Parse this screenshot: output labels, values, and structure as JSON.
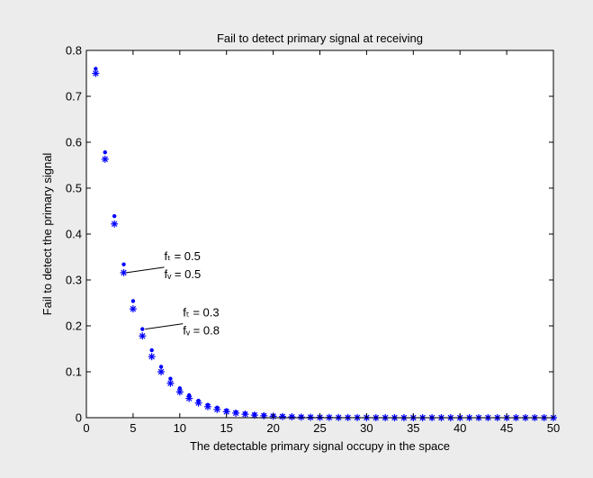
{
  "chart_data": {
    "type": "scatter",
    "title": "Fail to detect primary signal at receiving",
    "xlabel": "The detectable primary signal occupy in the space",
    "ylabel": "Fail to detect the primary signal",
    "xlim": [
      0,
      50
    ],
    "ylim": [
      0,
      0.8
    ],
    "xticks": [
      0,
      5,
      10,
      15,
      20,
      25,
      30,
      35,
      40,
      45,
      50
    ],
    "yticks": [
      0,
      0.1,
      0.2,
      0.3,
      0.4,
      0.5,
      0.6,
      0.7,
      0.8
    ],
    "ytick_labels": [
      "0",
      "0.1",
      "0.2",
      "0.3",
      "0.4",
      "0.5",
      "0.6",
      "0.7",
      "0.8"
    ],
    "grid": false,
    "marker_color": "#0000ff",
    "series": [
      {
        "marker": "dot",
        "x": [
          1,
          2,
          3,
          4,
          5,
          6,
          7,
          8,
          9,
          10,
          11,
          12,
          13,
          14,
          15,
          16,
          17,
          18,
          19,
          20,
          21,
          22,
          23,
          24,
          25,
          26,
          27,
          28,
          29,
          30,
          31,
          32,
          33,
          34,
          35,
          36,
          37,
          38,
          39,
          40,
          41,
          42,
          43,
          44,
          45,
          46,
          47,
          48,
          49,
          50
        ],
        "y": [
          0.76,
          0.578,
          0.439,
          0.334,
          0.254,
          0.193,
          0.147,
          0.111,
          0.085,
          0.064,
          0.049,
          0.037,
          0.028,
          0.022,
          0.016,
          0.012,
          0.0095,
          0.0072,
          0.0055,
          0.0042,
          0.0032,
          0.0024,
          0.0018,
          0.0014,
          0.0011,
          0.0008,
          0.0006,
          0.0005,
          0.0004,
          0.0003,
          0,
          0,
          0,
          0,
          0,
          0,
          0,
          0,
          0,
          0,
          0,
          0,
          0,
          0,
          0,
          0,
          0,
          0,
          0,
          0
        ]
      },
      {
        "marker": "star",
        "x": [
          1,
          2,
          3,
          4,
          5,
          6,
          7,
          8,
          9,
          10,
          11,
          12,
          13,
          14,
          15,
          16,
          17,
          18,
          19,
          20,
          21,
          22,
          23,
          24,
          25,
          26,
          27,
          28,
          29,
          30,
          31,
          32,
          33,
          34,
          35,
          36,
          37,
          38,
          39,
          40,
          41,
          42,
          43,
          44,
          45,
          46,
          47,
          48,
          49,
          50
        ],
        "y": [
          0.75,
          0.563,
          0.422,
          0.316,
          0.237,
          0.178,
          0.133,
          0.1,
          0.075,
          0.056,
          0.042,
          0.032,
          0.024,
          0.018,
          0.013,
          0.01,
          0.0075,
          0.0056,
          0.0042,
          0.0032,
          0.0024,
          0.0018,
          0.0013,
          0.001,
          0.0008,
          0.0006,
          0.0004,
          0.0003,
          0.0002,
          0.0002,
          0,
          0,
          0,
          0,
          0,
          0,
          0,
          0,
          0,
          0,
          0,
          0,
          0,
          0,
          0,
          0,
          0,
          0,
          0,
          0
        ]
      }
    ],
    "annotations": [
      {
        "line1": "fₜ = 0.5",
        "line2": "fᵥ = 0.5",
        "point": [
          4,
          0.316
        ]
      },
      {
        "line1": "fₜ = 0.3",
        "line2": "fᵥ = 0.8",
        "point": [
          6,
          0.193
        ]
      }
    ]
  }
}
